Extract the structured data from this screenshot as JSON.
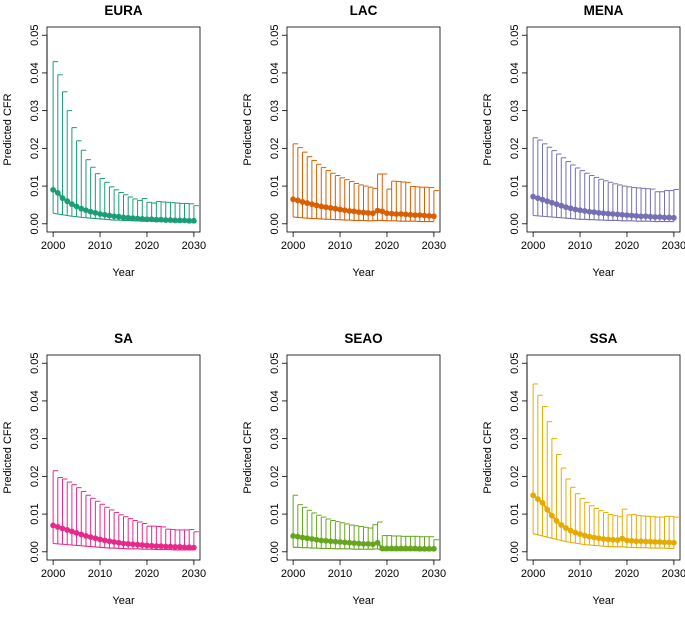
{
  "chart_data": [
    {
      "type": "line",
      "title": "EURA",
      "xlabel": "Year",
      "ylabel": "Predicted CFR",
      "color": "#1B9E77",
      "xlim": [
        2000,
        2030
      ],
      "ylim": [
        0,
        0.05
      ],
      "xticks": [
        2000,
        2010,
        2020,
        2030
      ],
      "xtick_labels": [
        "2000",
        "2010",
        "2020",
        "2030"
      ],
      "yticks": [
        0,
        0.01,
        0.02,
        0.03,
        0.04,
        0.05
      ],
      "ytick_labels": [
        "0.00",
        "0.01",
        "0.02",
        "0.03",
        "0.04",
        "0.05"
      ],
      "x": [
        2000,
        2001,
        2002,
        2003,
        2004,
        2005,
        2006,
        2007,
        2008,
        2009,
        2010,
        2011,
        2012,
        2013,
        2014,
        2015,
        2016,
        2017,
        2018,
        2019,
        2020,
        2021,
        2022,
        2023,
        2024,
        2025,
        2026,
        2027,
        2028,
        2029,
        2030
      ],
      "mean": [
        0.009,
        0.0082,
        0.0068,
        0.006,
        0.0052,
        0.0046,
        0.004,
        0.0036,
        0.0032,
        0.0029,
        0.0026,
        0.0024,
        0.0022,
        0.002,
        0.0019,
        0.0017,
        0.0016,
        0.0015,
        0.0014,
        0.0013,
        0.0012,
        0.0012,
        0.0011,
        0.0011,
        0.001,
        0.001,
        0.0009,
        0.0009,
        0.0009,
        0.0008,
        0.0008
      ],
      "lower": [
        0.0028,
        0.0026,
        0.0024,
        0.0022,
        0.002,
        0.0019,
        0.0017,
        0.0016,
        0.0015,
        0.0014,
        0.0013,
        0.0012,
        0.0011,
        0.001,
        0.001,
        0.0009,
        0.0009,
        0.0008,
        0.0008,
        0.0007,
        0.0007,
        0.0007,
        0.0006,
        0.0006,
        0.0006,
        0.0006,
        0.0005,
        0.0005,
        0.0005,
        0.0005,
        0.0005
      ],
      "upper": [
        0.043,
        0.0395,
        0.035,
        0.03,
        0.0255,
        0.022,
        0.0195,
        0.017,
        0.015,
        0.0133,
        0.012,
        0.011,
        0.0098,
        0.009,
        0.0083,
        0.0077,
        0.0071,
        0.0066,
        0.0062,
        0.0067,
        0.0057,
        0.0055,
        0.0059,
        0.0058,
        0.0057,
        0.0056,
        0.0055,
        0.0054,
        0.0054,
        0.0053,
        0.0048
      ]
    },
    {
      "type": "line",
      "title": "LAC",
      "xlabel": "Year",
      "ylabel": "Predicted CFR",
      "color": "#D95F02",
      "xlim": [
        2000,
        2030
      ],
      "ylim": [
        0,
        0.05
      ],
      "xticks": [
        2000,
        2010,
        2020,
        2030
      ],
      "xtick_labels": [
        "2000",
        "2010",
        "2020",
        "2030"
      ],
      "yticks": [
        0,
        0.01,
        0.02,
        0.03,
        0.04,
        0.05
      ],
      "ytick_labels": [
        "0.00",
        "0.01",
        "0.02",
        "0.03",
        "0.04",
        "0.05"
      ],
      "x": [
        2000,
        2001,
        2002,
        2003,
        2004,
        2005,
        2006,
        2007,
        2008,
        2009,
        2010,
        2011,
        2012,
        2013,
        2014,
        2015,
        2016,
        2017,
        2018,
        2019,
        2020,
        2021,
        2022,
        2023,
        2024,
        2025,
        2026,
        2027,
        2028,
        2029,
        2030
      ],
      "mean": [
        0.0065,
        0.0062,
        0.0058,
        0.0055,
        0.0052,
        0.0049,
        0.0046,
        0.0044,
        0.0042,
        0.004,
        0.0038,
        0.0036,
        0.0034,
        0.0033,
        0.0031,
        0.003,
        0.0029,
        0.0028,
        0.0035,
        0.0033,
        0.0028,
        0.0027,
        0.0026,
        0.0026,
        0.0025,
        0.0024,
        0.0023,
        0.0023,
        0.0022,
        0.0021,
        0.002
      ],
      "lower": [
        0.0018,
        0.0017,
        0.0016,
        0.0015,
        0.0014,
        0.0014,
        0.0013,
        0.0012,
        0.0012,
        0.0011,
        0.0011,
        0.001,
        0.001,
        0.0009,
        0.0009,
        0.0009,
        0.0008,
        0.0008,
        0.0009,
        0.0009,
        0.0008,
        0.0008,
        0.0008,
        0.0007,
        0.0007,
        0.0007,
        0.0007,
        0.0006,
        0.0006,
        0.0006,
        0.0006
      ],
      "upper": [
        0.0212,
        0.0202,
        0.019,
        0.0178,
        0.0168,
        0.0158,
        0.0149,
        0.0141,
        0.0134,
        0.0128,
        0.0122,
        0.0117,
        0.0112,
        0.0107,
        0.0103,
        0.01,
        0.0097,
        0.0094,
        0.0132,
        0.0132,
        0.0092,
        0.0113,
        0.0112,
        0.0111,
        0.011,
        0.0099,
        0.0098,
        0.0097,
        0.0097,
        0.0096,
        0.0088
      ]
    },
    {
      "type": "line",
      "title": "MENA",
      "xlabel": "Year",
      "ylabel": "Predicted CFR",
      "color": "#7570B3",
      "xlim": [
        2000,
        2030
      ],
      "ylim": [
        0,
        0.05
      ],
      "xticks": [
        2000,
        2010,
        2020,
        2030
      ],
      "xtick_labels": [
        "2000",
        "2010",
        "2020",
        "2030"
      ],
      "yticks": [
        0,
        0.01,
        0.02,
        0.03,
        0.04,
        0.05
      ],
      "ytick_labels": [
        "0.00",
        "0.01",
        "0.02",
        "0.03",
        "0.04",
        "0.05"
      ],
      "x": [
        2000,
        2001,
        2002,
        2003,
        2004,
        2005,
        2006,
        2007,
        2008,
        2009,
        2010,
        2011,
        2012,
        2013,
        2014,
        2015,
        2016,
        2017,
        2018,
        2019,
        2020,
        2021,
        2022,
        2023,
        2024,
        2025,
        2026,
        2027,
        2028,
        2029,
        2030
      ],
      "mean": [
        0.0072,
        0.0068,
        0.0064,
        0.006,
        0.0056,
        0.0052,
        0.0048,
        0.0044,
        0.0041,
        0.0038,
        0.0036,
        0.0034,
        0.0032,
        0.0031,
        0.0029,
        0.0028,
        0.0027,
        0.0026,
        0.0025,
        0.0024,
        0.0023,
        0.0022,
        0.0021,
        0.002,
        0.002,
        0.0019,
        0.0018,
        0.0018,
        0.0017,
        0.0017,
        0.0016
      ],
      "lower": [
        0.0022,
        0.0021,
        0.002,
        0.0019,
        0.0018,
        0.0017,
        0.0016,
        0.0015,
        0.0014,
        0.0013,
        0.0012,
        0.0012,
        0.0011,
        0.0011,
        0.001,
        0.001,
        0.0009,
        0.0009,
        0.0009,
        0.0008,
        0.0008,
        0.0008,
        0.0007,
        0.0007,
        0.0007,
        0.0007,
        0.0006,
        0.0006,
        0.0006,
        0.0006,
        0.0006
      ],
      "upper": [
        0.0228,
        0.0222,
        0.0212,
        0.0203,
        0.0194,
        0.0185,
        0.0175,
        0.0165,
        0.0156,
        0.0148,
        0.0141,
        0.0134,
        0.0128,
        0.0123,
        0.0118,
        0.0114,
        0.011,
        0.0106,
        0.0103,
        0.01,
        0.0098,
        0.0096,
        0.0095,
        0.0094,
        0.0093,
        0.0092,
        0.0085,
        0.0085,
        0.0088,
        0.0088,
        0.0091
      ]
    },
    {
      "type": "line",
      "title": "SA",
      "xlabel": "Year",
      "ylabel": "Predicted CFR",
      "color": "#E7298A",
      "xlim": [
        2000,
        2030
      ],
      "ylim": [
        0,
        0.05
      ],
      "xticks": [
        2000,
        2010,
        2020,
        2030
      ],
      "xtick_labels": [
        "2000",
        "2010",
        "2020",
        "2030"
      ],
      "yticks": [
        0,
        0.01,
        0.02,
        0.03,
        0.04,
        0.05
      ],
      "ytick_labels": [
        "0.00",
        "0.01",
        "0.02",
        "0.03",
        "0.04",
        "0.05"
      ],
      "x": [
        2000,
        2001,
        2002,
        2003,
        2004,
        2005,
        2006,
        2007,
        2008,
        2009,
        2010,
        2011,
        2012,
        2013,
        2014,
        2015,
        2016,
        2017,
        2018,
        2019,
        2020,
        2021,
        2022,
        2023,
        2024,
        2025,
        2026,
        2027,
        2028,
        2029,
        2030
      ],
      "mean": [
        0.007,
        0.0066,
        0.0062,
        0.0058,
        0.0054,
        0.005,
        0.0046,
        0.0042,
        0.0039,
        0.0036,
        0.0033,
        0.003,
        0.0028,
        0.0026,
        0.0024,
        0.0022,
        0.0021,
        0.002,
        0.0019,
        0.0018,
        0.0017,
        0.0016,
        0.0015,
        0.0015,
        0.0014,
        0.0014,
        0.0013,
        0.0013,
        0.0012,
        0.0012,
        0.0011
      ],
      "lower": [
        0.0022,
        0.0021,
        0.002,
        0.0019,
        0.0018,
        0.0017,
        0.0016,
        0.0015,
        0.0014,
        0.0013,
        0.0012,
        0.0011,
        0.001,
        0.001,
        0.0009,
        0.0009,
        0.0008,
        0.0008,
        0.0008,
        0.0007,
        0.0007,
        0.0007,
        0.0006,
        0.0006,
        0.0006,
        0.0006,
        0.0005,
        0.0005,
        0.0005,
        0.0005,
        0.0005
      ],
      "upper": [
        0.0215,
        0.0197,
        0.0193,
        0.0185,
        0.0178,
        0.017,
        0.016,
        0.015,
        0.0142,
        0.0134,
        0.0126,
        0.0118,
        0.0111,
        0.0104,
        0.0098,
        0.0093,
        0.0088,
        0.0083,
        0.0079,
        0.0075,
        0.0068,
        0.0068,
        0.0067,
        0.0066,
        0.006,
        0.0059,
        0.0058,
        0.0058,
        0.0058,
        0.0059,
        0.0053
      ]
    },
    {
      "type": "line",
      "title": "SEAO",
      "xlabel": "Year",
      "ylabel": "Predicted CFR",
      "color": "#66A61E",
      "xlim": [
        2000,
        2030
      ],
      "ylim": [
        0,
        0.05
      ],
      "xticks": [
        2000,
        2010,
        2020,
        2030
      ],
      "xtick_labels": [
        "2000",
        "2010",
        "2020",
        "2030"
      ],
      "yticks": [
        0,
        0.01,
        0.02,
        0.03,
        0.04,
        0.05
      ],
      "ytick_labels": [
        "0.00",
        "0.01",
        "0.02",
        "0.03",
        "0.04",
        "0.05"
      ],
      "x": [
        2000,
        2001,
        2002,
        2003,
        2004,
        2005,
        2006,
        2007,
        2008,
        2009,
        2010,
        2011,
        2012,
        2013,
        2014,
        2015,
        2016,
        2017,
        2018,
        2019,
        2020,
        2021,
        2022,
        2023,
        2024,
        2025,
        2026,
        2027,
        2028,
        2029,
        2030
      ],
      "mean": [
        0.0042,
        0.004,
        0.0038,
        0.0036,
        0.0034,
        0.0032,
        0.003,
        0.0029,
        0.0028,
        0.0027,
        0.0026,
        0.0025,
        0.0024,
        0.0023,
        0.0022,
        0.0021,
        0.0021,
        0.002,
        0.0024,
        0.0009,
        0.0009,
        0.0009,
        0.0009,
        0.0009,
        0.0009,
        0.0009,
        0.0009,
        0.0008,
        0.0008,
        0.0008,
        0.0008
      ],
      "lower": [
        0.0012,
        0.0012,
        0.0011,
        0.0011,
        0.001,
        0.001,
        0.0009,
        0.0009,
        0.0009,
        0.0008,
        0.0008,
        0.0008,
        0.0008,
        0.0007,
        0.0007,
        0.0007,
        0.0007,
        0.0007,
        0.0008,
        0.0003,
        0.0003,
        0.0003,
        0.0003,
        0.0003,
        0.0003,
        0.0003,
        0.0003,
        0.0003,
        0.0003,
        0.0003,
        0.0003
      ],
      "upper": [
        0.015,
        0.0125,
        0.0118,
        0.011,
        0.0103,
        0.0097,
        0.0092,
        0.0087,
        0.0083,
        0.008,
        0.0077,
        0.0074,
        0.0071,
        0.0069,
        0.0067,
        0.0065,
        0.0063,
        0.0072,
        0.0079,
        0.0043,
        0.0043,
        0.0042,
        0.0042,
        0.0041,
        0.0041,
        0.0041,
        0.0041,
        0.004,
        0.004,
        0.004,
        0.0032
      ]
    },
    {
      "type": "line",
      "title": "SSA",
      "xlabel": "Year",
      "ylabel": "Predicted CFR",
      "color": "#E6AB02",
      "xlim": [
        2000,
        2030
      ],
      "ylim": [
        0,
        0.05
      ],
      "xticks": [
        2000,
        2010,
        2020,
        2030
      ],
      "xtick_labels": [
        "2000",
        "2010",
        "2020",
        "2030"
      ],
      "yticks": [
        0,
        0.01,
        0.02,
        0.03,
        0.04,
        0.05
      ],
      "ytick_labels": [
        "0.00",
        "0.01",
        "0.02",
        "0.03",
        "0.04",
        "0.05"
      ],
      "x": [
        2000,
        2001,
        2002,
        2003,
        2004,
        2005,
        2006,
        2007,
        2008,
        2009,
        2010,
        2011,
        2012,
        2013,
        2014,
        2015,
        2016,
        2017,
        2018,
        2019,
        2020,
        2021,
        2022,
        2023,
        2024,
        2025,
        2026,
        2027,
        2028,
        2029,
        2030
      ],
      "mean": [
        0.015,
        0.014,
        0.013,
        0.0112,
        0.0096,
        0.0082,
        0.0071,
        0.0063,
        0.0056,
        0.0051,
        0.0047,
        0.0043,
        0.004,
        0.0038,
        0.0036,
        0.0034,
        0.0033,
        0.0032,
        0.0031,
        0.0035,
        0.003,
        0.0029,
        0.0028,
        0.0028,
        0.0027,
        0.0027,
        0.0026,
        0.0026,
        0.0025,
        0.0025,
        0.0024
      ],
      "lower": [
        0.0048,
        0.0045,
        0.0042,
        0.0039,
        0.0036,
        0.0033,
        0.003,
        0.0027,
        0.0025,
        0.0023,
        0.0021,
        0.0019,
        0.0018,
        0.0017,
        0.0016,
        0.0015,
        0.0014,
        0.0014,
        0.0013,
        0.0014,
        0.0012,
        0.0012,
        0.0011,
        0.0011,
        0.0011,
        0.001,
        0.001,
        0.001,
        0.001,
        0.0009,
        0.0009
      ],
      "upper": [
        0.0445,
        0.0415,
        0.0385,
        0.0345,
        0.03,
        0.0258,
        0.0222,
        0.0193,
        0.0171,
        0.0154,
        0.0141,
        0.0131,
        0.0122,
        0.0115,
        0.0109,
        0.0104,
        0.0099,
        0.0096,
        0.0093,
        0.0113,
        0.0098,
        0.0099,
        0.0096,
        0.0095,
        0.0094,
        0.0093,
        0.0092,
        0.0092,
        0.0094,
        0.0094,
        0.0092
      ]
    }
  ]
}
